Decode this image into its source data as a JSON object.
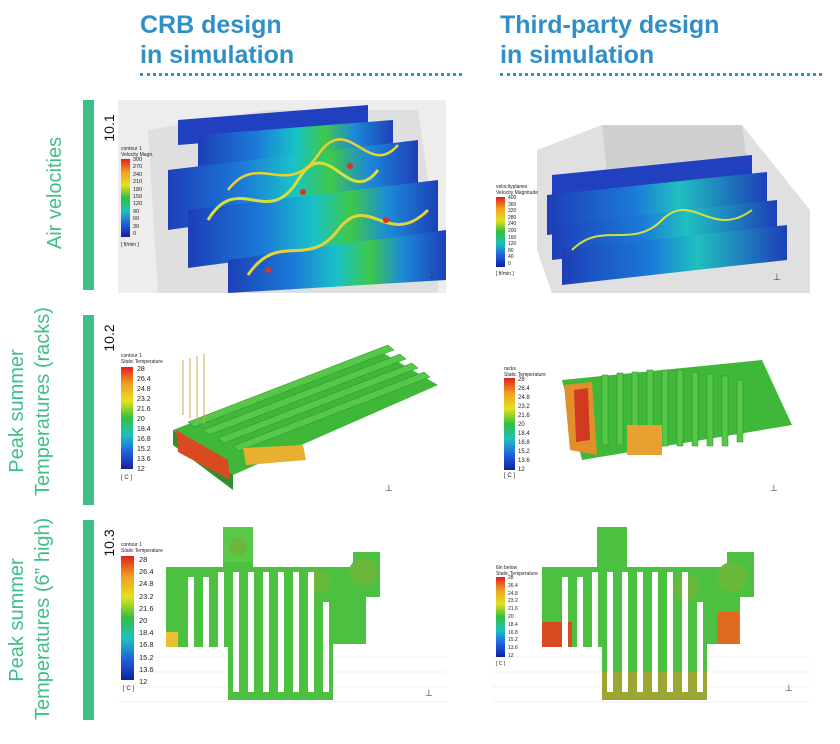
{
  "columns": [
    {
      "line1": "CRB design",
      "line2": "in simulation"
    },
    {
      "line1": "Third-party design",
      "line2": "in simulation"
    }
  ],
  "rows": [
    {
      "number": "10.1",
      "label_line1": "Air velocities",
      "label_line2": ""
    },
    {
      "number": "10.2",
      "label_line1": "Peak summer",
      "label_line2": "Temperatures (racks)"
    },
    {
      "number": "10.3",
      "label_line1": "Peak summer",
      "label_line2": "Temperatures (6” high)"
    }
  ],
  "legends": {
    "velocity_crb": {
      "title1": "contour 1",
      "title2": "Velocity Magn.",
      "unit": "[ ft/min ]",
      "ticks": [
        "300",
        "270",
        "240",
        "210",
        "180",
        "150",
        "120",
        "90",
        "60",
        "30",
        "0"
      ]
    },
    "velocity_tp": {
      "title1": "velocityplanes",
      "title2": "Velocity Magnitude",
      "unit": "[ ft/min ]",
      "ticks": [
        "400",
        "360",
        "320",
        "280",
        "240",
        "200",
        "160",
        "120",
        "80",
        "40",
        "0"
      ]
    },
    "temp_racks_crb": {
      "title1": "contour 1",
      "title2": "Static Temperature",
      "unit": "[ C ]",
      "ticks": [
        "28",
        "26.4",
        "24.8",
        "23.2",
        "21.6",
        "20",
        "18.4",
        "16.8",
        "15.2",
        "13.6",
        "12"
      ]
    },
    "temp_racks_tp": {
      "title1": "racks",
      "title2": "Static Temperature",
      "unit": "[ C ]",
      "ticks": [
        "28",
        "26.4",
        "24.8",
        "23.2",
        "21.6",
        "20",
        "18.4",
        "16.8",
        "15.2",
        "13.6",
        "12"
      ]
    },
    "temp_floor_crb": {
      "title1": "contour 1",
      "title2": "Static Temperature",
      "unit": "[ C ]",
      "ticks": [
        "28",
        "26.4",
        "24.8",
        "23.2",
        "21.6",
        "20",
        "18.4",
        "16.8",
        "15.2",
        "13.6",
        "12"
      ]
    },
    "temp_floor_tp": {
      "title1": "6in below",
      "title2": "Static Temperature",
      "unit": "[ C ]",
      "ticks": [
        "28",
        "26.4",
        "24.8",
        "23.2",
        "21.6",
        "20",
        "18.4",
        "16.8",
        "15.2",
        "13.6",
        "12"
      ]
    }
  },
  "colors": {
    "header_blue": "#2f8fc6",
    "label_green": "#3fbf87",
    "plane_blue": "#1d3fb8",
    "rack_green": "#3fb83a"
  }
}
